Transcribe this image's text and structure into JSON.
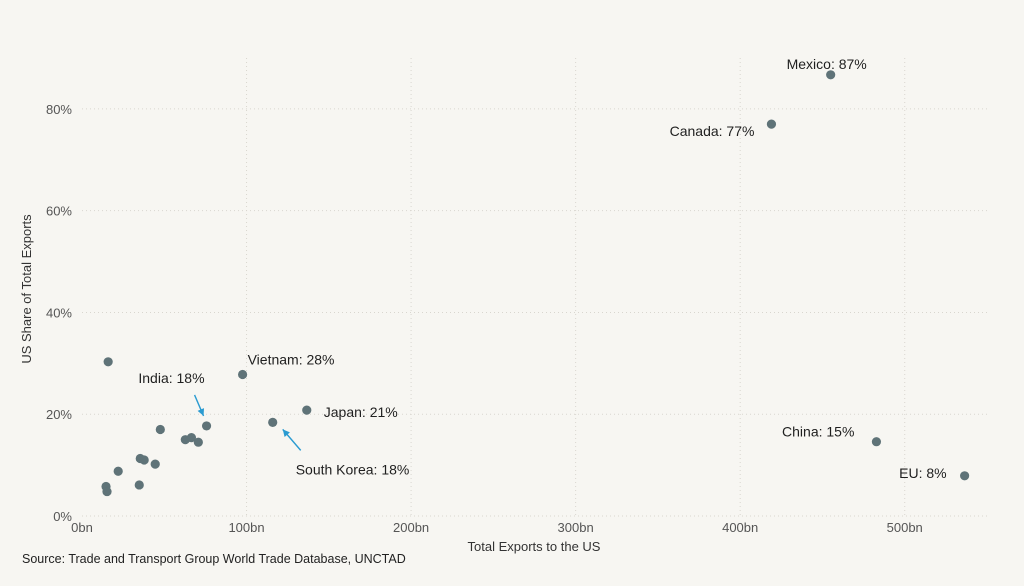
{
  "chart_data": {
    "type": "scatter",
    "title": "",
    "xlabel": "Total Exports to the US",
    "ylabel": "US Share of Total Exports",
    "xlim": [
      0,
      550
    ],
    "ylim": [
      0,
      90
    ],
    "x_ticks": [
      {
        "value": 0,
        "label": "0bn"
      },
      {
        "value": 100,
        "label": "100bn"
      },
      {
        "value": 200,
        "label": "200bn"
      },
      {
        "value": 300,
        "label": "300bn"
      },
      {
        "value": 400,
        "label": "400bn"
      },
      {
        "value": 500,
        "label": "500bn"
      }
    ],
    "y_ticks": [
      {
        "value": 0,
        "label": "0%"
      },
      {
        "value": 20,
        "label": "20%"
      },
      {
        "value": 40,
        "label": "40%"
      },
      {
        "value": 60,
        "label": "60%"
      },
      {
        "value": 80,
        "label": "80%"
      }
    ],
    "grid": true,
    "marker_color": "#5f7378",
    "arrow_color": "#2b9bd1",
    "points": [
      {
        "x": 455,
        "y": 86.7,
        "label": "Mexico: 87%"
      },
      {
        "x": 419,
        "y": 77.0,
        "label": "Canada: 77%"
      },
      {
        "x": 97.6,
        "y": 27.8,
        "label": "Vietnam: 28%"
      },
      {
        "x": 136.6,
        "y": 20.8,
        "label": "Japan: 21%"
      },
      {
        "x": 75.7,
        "y": 17.7,
        "label": "India: 18%"
      },
      {
        "x": 115.9,
        "y": 18.4,
        "label": "South Korea: 18%"
      },
      {
        "x": 482.8,
        "y": 14.6,
        "label": "China: 15%"
      },
      {
        "x": 536.4,
        "y": 7.9,
        "label": "EU: 8%"
      },
      {
        "x": 15.9,
        "y": 30.3
      },
      {
        "x": 47.6,
        "y": 17.0
      },
      {
        "x": 62.8,
        "y": 15.0
      },
      {
        "x": 66.5,
        "y": 15.4
      },
      {
        "x": 70.7,
        "y": 14.5
      },
      {
        "x": 35.4,
        "y": 11.3
      },
      {
        "x": 37.8,
        "y": 11.0
      },
      {
        "x": 44.5,
        "y": 10.2
      },
      {
        "x": 22.0,
        "y": 8.8
      },
      {
        "x": 14.6,
        "y": 5.8
      },
      {
        "x": 15.2,
        "y": 4.8
      },
      {
        "x": 34.8,
        "y": 6.1
      }
    ]
  },
  "source": "Source: Trade and Transport Group World Trade Database, UNCTAD"
}
